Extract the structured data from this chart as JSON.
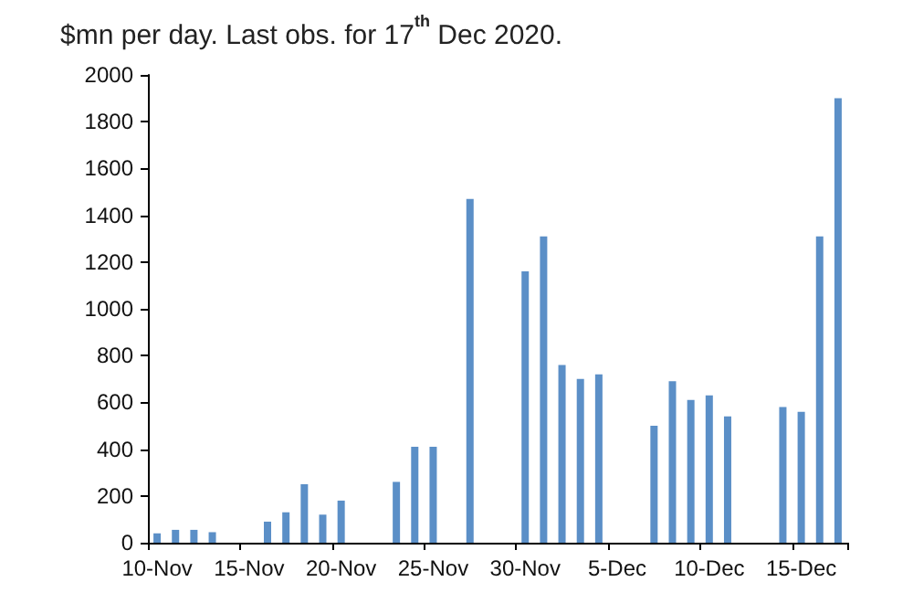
{
  "chart_data": {
    "type": "bar",
    "title": "$mn per day. Last obs. for 17$^{th}$ Dec 2020.",
    "categories": [
      "10-Nov",
      null,
      null,
      null,
      null,
      "15-Nov",
      null,
      null,
      null,
      null,
      "20-Nov",
      null,
      null,
      null,
      null,
      "25-Nov",
      null,
      null,
      null,
      null,
      "30-Nov",
      null,
      null,
      null,
      null,
      "5-Dec",
      null,
      null,
      null,
      null,
      "10-Dec",
      null,
      null,
      null,
      null,
      "15-Dec",
      null,
      null
    ],
    "values": [
      40,
      55,
      55,
      45,
      null,
      null,
      90,
      130,
      250,
      120,
      180,
      null,
      null,
      260,
      410,
      410,
      null,
      1470,
      null,
      null,
      1160,
      1310,
      760,
      700,
      720,
      null,
      null,
      500,
      690,
      610,
      630,
      540,
      null,
      null,
      580,
      560,
      1310,
      1900
    ],
    "color": "#5b8fc7",
    "ylim": [
      0,
      2000
    ],
    "yticks": [
      0,
      200,
      400,
      600,
      800,
      1000,
      1200,
      1400,
      1600,
      1800,
      2000
    ],
    "grid": false
  }
}
